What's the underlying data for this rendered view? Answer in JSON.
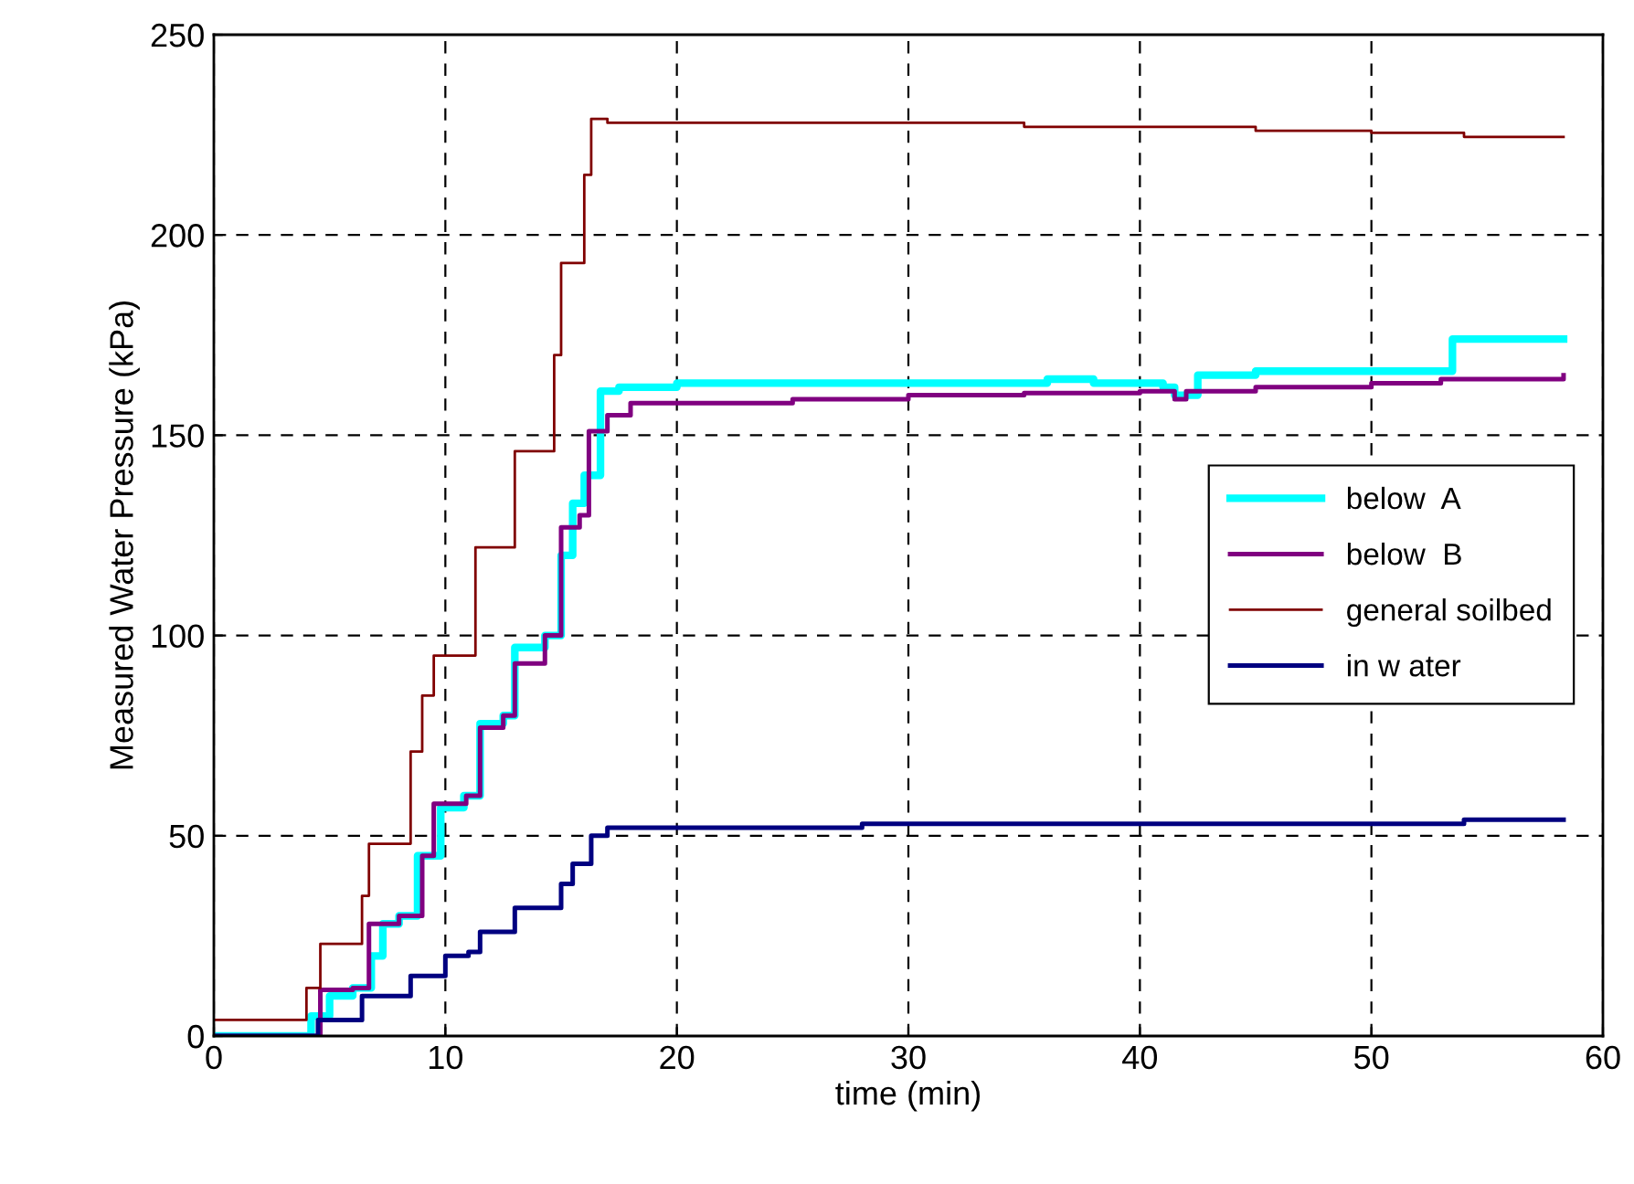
{
  "chart_data": {
    "type": "step",
    "xlabel": "time (min)",
    "ylabel": "Measured Water Pressure (kPa)",
    "xlim": [
      0,
      60
    ],
    "xticks": [
      0,
      10,
      20,
      30,
      40,
      50,
      60
    ],
    "ylim": [
      0,
      250
    ],
    "yticks": [
      0,
      50,
      100,
      150,
      200,
      250
    ],
    "grid": true,
    "legend": "right",
    "line_style": "solid",
    "series": [
      {
        "name": "below  A",
        "color": "#00ffff",
        "x": [
          0,
          3.2,
          4.2,
          5.0,
          6.0,
          6.8,
          7.3,
          8.0,
          8.8,
          9.8,
          10.8,
          11.5,
          12.5,
          13.0,
          14.3,
          15.0,
          15.5,
          16.0,
          16.7,
          17.5,
          20,
          35,
          36,
          38,
          41,
          41.5,
          42.5,
          45,
          53,
          53.5,
          58.3
        ],
        "values": [
          0,
          0,
          5,
          10,
          12,
          20,
          28,
          30,
          45,
          57,
          60,
          78,
          80,
          97,
          100,
          120,
          133,
          140,
          161,
          162,
          163,
          163,
          164,
          163,
          162,
          160,
          165,
          166,
          166,
          174,
          174
        ]
      },
      {
        "name": "below  B",
        "color": "#800080",
        "x": [
          0,
          3.5,
          4.6,
          6.0,
          6.7,
          8.0,
          9.0,
          9.5,
          10.9,
          11.5,
          12.5,
          13.0,
          14.3,
          15.0,
          15.8,
          16.2,
          17.0,
          18.0,
          20,
          25,
          30,
          35,
          40,
          41.5,
          42,
          45,
          50,
          53,
          58.3
        ],
        "values": [
          0,
          0,
          11.5,
          12,
          28,
          30,
          45,
          58,
          60,
          77,
          80,
          93,
          100,
          127,
          130,
          151,
          155,
          158,
          158,
          159,
          160,
          160.5,
          161,
          159,
          161,
          162,
          163,
          164,
          165
        ]
      },
      {
        "name": "general soilbed",
        "color": "#800000",
        "x": [
          0,
          3.4,
          4.0,
          4.6,
          6.0,
          6.4,
          6.7,
          8.0,
          8.5,
          9.0,
          9.5,
          10.9,
          11.3,
          12.6,
          13.0,
          14.3,
          14.7,
          15.0,
          15.7,
          16.0,
          16.3,
          17.0,
          20,
          30,
          35,
          37,
          45,
          50,
          54,
          58.3
        ],
        "values": [
          4,
          4,
          12,
          23,
          23,
          35,
          48,
          48,
          71,
          85,
          95,
          95,
          122,
          122,
          146,
          146,
          170,
          193,
          193,
          215,
          229,
          228,
          228,
          228,
          227,
          227,
          226,
          225.5,
          224.5,
          224.5
        ]
      },
      {
        "name": "in w ater",
        "color": "#000080",
        "x": [
          0,
          3.5,
          4.5,
          6.4,
          8.5,
          10.0,
          11.0,
          11.5,
          13.0,
          15.0,
          15.5,
          16.3,
          17.0,
          27,
          28,
          52,
          54,
          58.3
        ],
        "values": [
          0,
          0,
          4,
          10,
          15,
          20,
          21,
          26,
          32,
          38,
          43,
          50,
          52,
          52,
          53,
          53,
          54,
          54
        ]
      }
    ]
  }
}
